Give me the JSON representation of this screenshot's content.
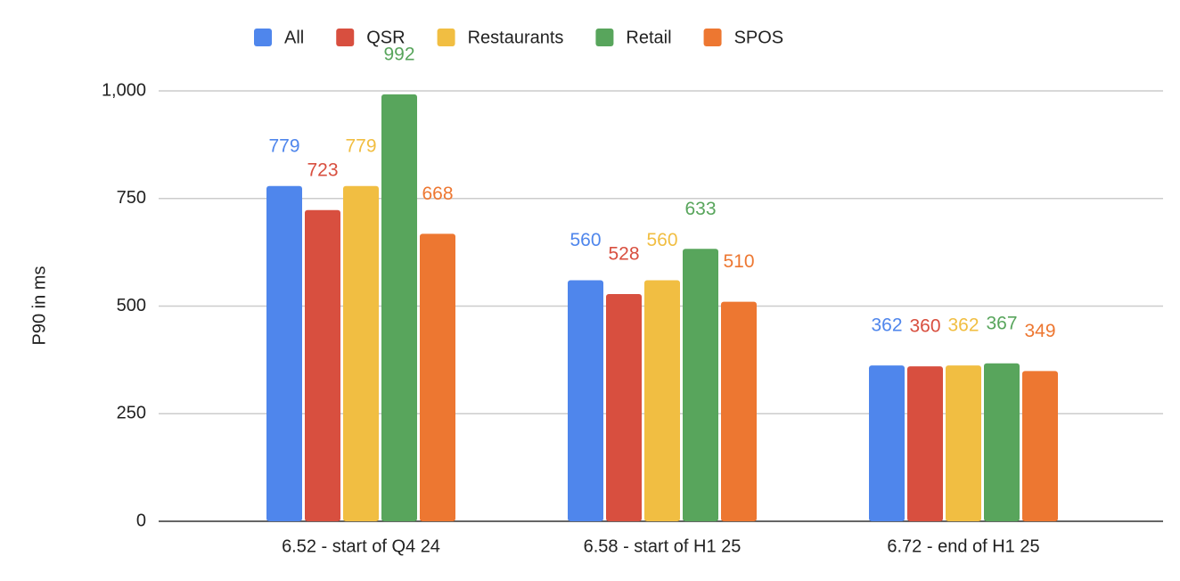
{
  "chart_data": {
    "type": "bar",
    "y_label": "P90 in ms",
    "categories": [
      "6.52 - start of Q4 24",
      "6.58 - start of H1 25",
      "6.72 - end of H1 25"
    ],
    "series": [
      {
        "name": "All",
        "color": "#4f86ec",
        "values": [
          779,
          560,
          362
        ]
      },
      {
        "name": "QSR",
        "color": "#d84f3f",
        "values": [
          723,
          528,
          360
        ]
      },
      {
        "name": "Restaurants",
        "color": "#f1be42",
        "values": [
          779,
          560,
          362
        ]
      },
      {
        "name": "Retail",
        "color": "#58a55c",
        "values": [
          992,
          633,
          367
        ]
      },
      {
        "name": "SPOS",
        "color": "#ed7731",
        "values": [
          668,
          510,
          349
        ]
      }
    ],
    "ylim": [
      0,
      1000
    ],
    "yticks": [
      0,
      250,
      500,
      750,
      {
        "value": 1000,
        "label": "1,000"
      }
    ],
    "grid": true,
    "legend": "top"
  }
}
